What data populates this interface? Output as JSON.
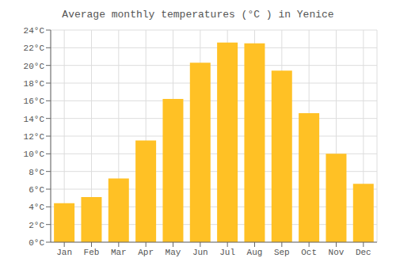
{
  "chart_data": {
    "type": "bar",
    "title": "Average monthly temperatures (°C ) in Yenice",
    "categories": [
      "Jan",
      "Feb",
      "Mar",
      "Apr",
      "May",
      "Jun",
      "Jul",
      "Aug",
      "Sep",
      "Oct",
      "Nov",
      "Dec"
    ],
    "values": [
      4.4,
      5.1,
      7.2,
      11.5,
      16.2,
      20.3,
      22.6,
      22.5,
      19.4,
      14.6,
      10.0,
      6.6
    ],
    "color": "#FFC125",
    "ylim": [
      0,
      24
    ],
    "yticks": [
      {
        "value": 0,
        "label": "0°C"
      },
      {
        "value": 2,
        "label": "2°C"
      },
      {
        "value": 4,
        "label": "4°C"
      },
      {
        "value": 6,
        "label": "6°C"
      },
      {
        "value": 8,
        "label": "8°C"
      },
      {
        "value": 10,
        "label": "10°C"
      },
      {
        "value": 12,
        "label": "12°C"
      },
      {
        "value": 14,
        "label": "14°C"
      },
      {
        "value": 16,
        "label": "16°C"
      },
      {
        "value": 18,
        "label": "18°C"
      },
      {
        "value": 20,
        "label": "20°C"
      },
      {
        "value": 22,
        "label": "22°C"
      },
      {
        "value": 24,
        "label": "24°C"
      }
    ],
    "grid": true
  }
}
